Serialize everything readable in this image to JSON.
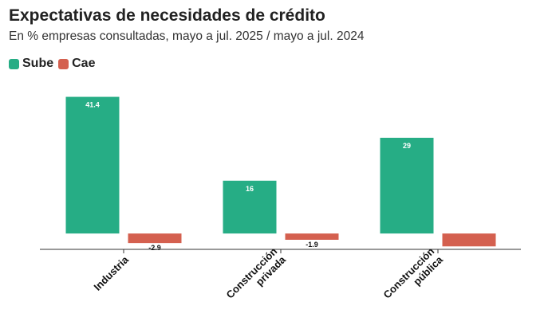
{
  "title": "Expectativas de necesidades de crédito",
  "subtitle": "En % empresas consultadas, mayo a jul. 2025 / mayo a jul. 2024",
  "legend": {
    "sube": "Sube",
    "cae": "Cae"
  },
  "colors": {
    "sube": "#26ad85",
    "cae": "#d4604f"
  },
  "chart_data": {
    "type": "bar",
    "categories": [
      [
        "Industria"
      ],
      [
        "Construcción",
        "privada"
      ],
      [
        "Construcción",
        "pública"
      ]
    ],
    "series": [
      {
        "name": "Sube",
        "values": [
          41.4,
          16,
          29
        ],
        "labels": [
          "41.4",
          "16",
          "29"
        ]
      },
      {
        "name": "Cae",
        "values": [
          -2.9,
          -1.9,
          -3.9
        ],
        "labels": [
          "-2.9",
          "-1.9",
          ""
        ]
      }
    ],
    "ylim": [
      -4.8,
      42.5
    ],
    "grid": false,
    "legend_position": "top-left"
  }
}
